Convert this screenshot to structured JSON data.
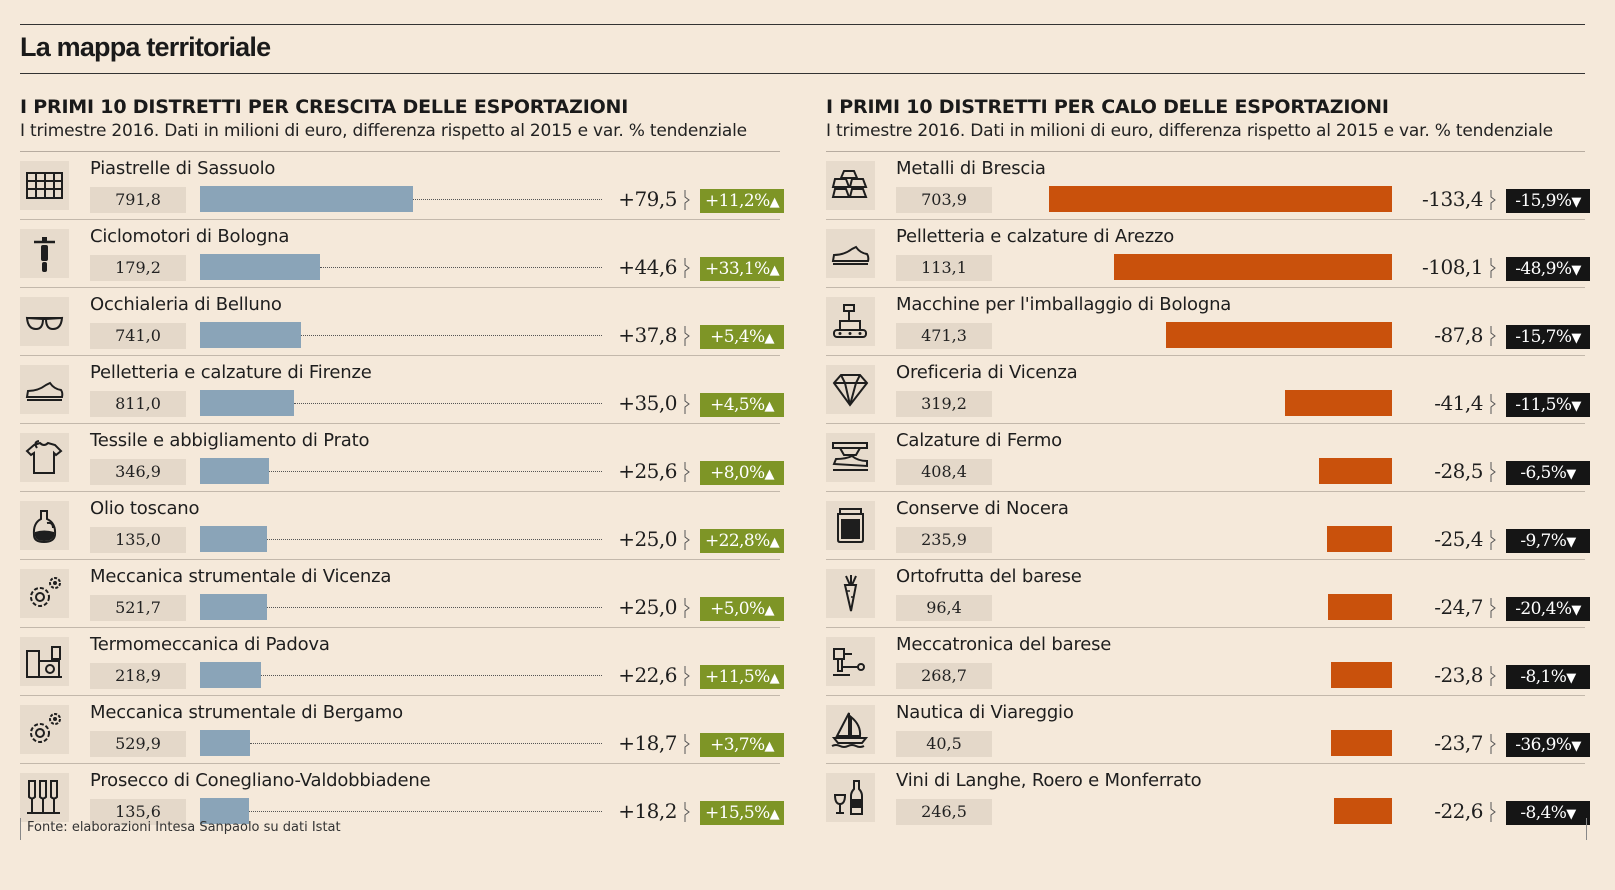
{
  "page": {
    "title": "La mappa territoriale",
    "footer": "Fonte: elaborazioni Intesa Sanpaolo su dati Istat"
  },
  "colors": {
    "background": "#f5e9da",
    "growth_bar": "#8aa4b8",
    "decline_bar": "#c9510c",
    "pct_up": "#7e9526",
    "pct_down": "#151515"
  },
  "chart_data": [
    {
      "type": "bar",
      "title": "I PRIMI 10 DISTRETTI PER CRESCITA DELLE ESPORTAZIONI",
      "subtitle": "I trimestre 2016. Dati in milioni di euro, differenza rispetto al 2015 e var. % tendenziale",
      "categories": [
        "Piastrelle di Sassuolo",
        "Ciclomotori di Bologna",
        "Occhialeria di Belluno",
        "Pelletteria e calzature di Firenze",
        "Tessile e abbigliamento di Prato",
        "Olio toscano",
        "Meccanica strumentale di Vicenza",
        "Termomeccanica di Padova",
        "Meccanica strumentale di Bergamo",
        "Prosecco di Conegliano-Valdobbiadene"
      ],
      "icons": [
        "tiles-icon",
        "moped-icon",
        "glasses-icon",
        "shoe-icon",
        "tshirt-icon",
        "olive-oil-icon",
        "gears-icon",
        "boiler-plant-icon",
        "gears-icon",
        "wine-glasses-icon"
      ],
      "export_values": [
        "791,8",
        "179,2",
        "741,0",
        "811,0",
        "346,9",
        "135,0",
        "521,7",
        "218,9",
        "529,9",
        "135,6"
      ],
      "values": [
        79.5,
        44.6,
        37.8,
        35.0,
        25.6,
        25.0,
        25.0,
        22.6,
        18.7,
        18.2
      ],
      "value_labels": [
        "+79,5",
        "+44,6",
        "+37,8",
        "+35,0",
        "+25,6",
        "+25,0",
        "+25,0",
        "+22,6",
        "+18,7",
        "+18,2"
      ],
      "pct_labels": [
        "+11,2%",
        "+33,1%",
        "+5,4%",
        "+4,5%",
        "+8,0%",
        "+22,8%",
        "+5,0%",
        "+11,5%",
        "+3,7%",
        "+15,5%"
      ],
      "pct_direction": "up",
      "xlim": [
        0,
        150
      ]
    },
    {
      "type": "bar",
      "title": "I PRIMI 10 DISTRETTI PER CALO DELLE ESPORTAZIONI",
      "subtitle": "I trimestre 2016. Dati in milioni di euro, differenza rispetto al 2015 e var. % tendenziale",
      "categories": [
        "Metalli di Brescia",
        "Pelletteria e calzature di Arezzo",
        "Macchine per l'imballaggio di Bologna",
        "Oreficeria di Vicenza",
        "Calzature di Fermo",
        "Conserve di Nocera",
        "Ortofrutta del barese",
        "Meccatronica del barese",
        "Nautica di Viareggio",
        "Vini di Langhe, Roero e Monferrato"
      ],
      "icons": [
        "metal-ingots-icon",
        "shoe-icon",
        "packaging-machine-icon",
        "diamond-icon",
        "shoe-press-icon",
        "jar-icon",
        "carrot-icon",
        "robot-arm-icon",
        "sailboat-icon",
        "wine-bottle-icon"
      ],
      "export_values": [
        "703,9",
        "113,1",
        "471,3",
        "319,2",
        "408,4",
        "235,9",
        "96,4",
        "268,7",
        "40,5",
        "246,5"
      ],
      "values": [
        -133.4,
        -108.1,
        -87.8,
        -41.4,
        -28.5,
        -25.4,
        -24.7,
        -23.8,
        -23.7,
        -22.6
      ],
      "value_labels": [
        "-133,4",
        "-108,1",
        "-87,8",
        "-41,4",
        "-28,5",
        "-25,4",
        "-24,7",
        "-23,8",
        "-23,7",
        "-22,6"
      ],
      "pct_labels": [
        "-15,9%",
        "-48,9%",
        "-15,7%",
        "-11,5%",
        "-6,5%",
        "-9,7%",
        "-20,4%",
        "-8,1%",
        "-36,9%",
        "-8,4%"
      ],
      "pct_direction": "down",
      "xlim": [
        -150,
        0
      ]
    }
  ]
}
